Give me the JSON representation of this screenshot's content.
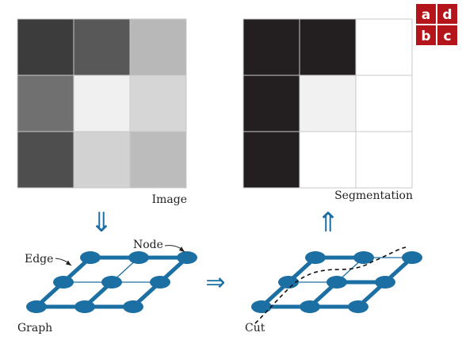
{
  "panel_labels": [
    "a",
    "d",
    "b",
    "c"
  ],
  "image_label": "Image",
  "segmentation_label": "Segmentation",
  "graph_label": "Graph",
  "cut_label": "Cut",
  "edge_label": "Edge",
  "node_label": "Node",
  "arrow_down": "⇓",
  "arrow_up": "⇑",
  "arrow_right": "⇒",
  "colors": {
    "graph_blue": "#1b6fa3",
    "panel_red": "#b3151b",
    "grid_line": "#c8c8c8"
  },
  "image_grid": [
    [
      "#3c3c3c",
      "#585858",
      "#b8b8b8"
    ],
    [
      "#707070",
      "#f0f0f0",
      "#d6d6d6"
    ],
    [
      "#4e4e4e",
      "#d2d2d2",
      "#bcbcbc"
    ]
  ],
  "segmentation_grid": [
    [
      "#231f20",
      "#231f20",
      "#ffffff"
    ],
    [
      "#231f20",
      "#f1f1f1",
      "#ffffff"
    ],
    [
      "#231f20",
      "#ffffff",
      "#ffffff"
    ]
  ]
}
